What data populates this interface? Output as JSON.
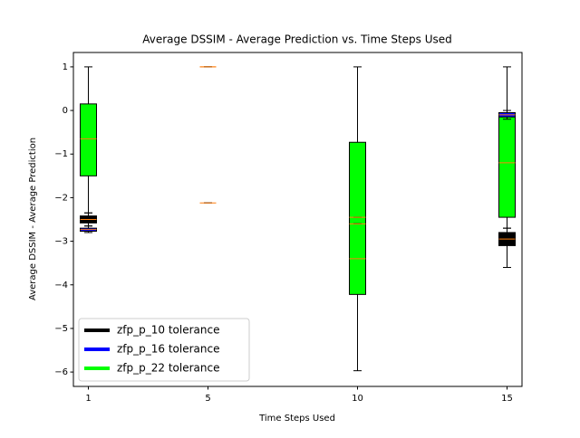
{
  "chart_data": {
    "type": "boxplot",
    "title": "Average DSSIM - Average Prediction vs. Time Steps Used",
    "xlabel": "Time Steps Used",
    "ylabel": "Average DSSIM - Average Prediction",
    "x": [
      1,
      5,
      10,
      15
    ],
    "xlim": [
      0.5,
      15.5
    ],
    "ylim": [
      -6.33,
      1.33
    ],
    "xticks": [
      1,
      5,
      10,
      15
    ],
    "yticks": [
      {
        "value": -6,
        "label": "−6"
      },
      {
        "value": -5,
        "label": "−5"
      },
      {
        "value": -4,
        "label": "−4"
      },
      {
        "value": -3,
        "label": "−3"
      },
      {
        "value": -2,
        "label": "−2"
      },
      {
        "value": -1,
        "label": "−1"
      },
      0,
      1
    ],
    "legend": "lower left",
    "median_color": "#ff7f0e",
    "series": [
      {
        "name": "zfp_p_10 tolerance",
        "color": "#000000",
        "values": [
          {
            "whislo": -2.65,
            "q1": -2.58,
            "med": -2.5,
            "q3": -2.42,
            "whishi": -2.35
          },
          {
            "whislo": -2.12,
            "q1": -2.12,
            "med": -2.12,
            "q3": -2.12,
            "whishi": -2.12
          },
          {
            "whislo": -2.45,
            "q1": -2.45,
            "med": -2.45,
            "q3": -2.45,
            "whishi": -2.45
          },
          {
            "whislo": -3.6,
            "q1": -3.1,
            "med": -2.95,
            "q3": -2.8,
            "whishi": -2.7
          }
        ]
      },
      {
        "name": "zfp_p_16 tolerance",
        "color": "#0000ff",
        "values": [
          {
            "whislo": -2.8,
            "q1": -2.77,
            "med": -2.73,
            "q3": -2.7,
            "whishi": -2.65
          },
          {
            "whislo": 1,
            "q1": 1,
            "med": 1,
            "q3": 1,
            "whishi": 1
          },
          {
            "whislo": -2.6,
            "q1": -2.6,
            "med": -2.6,
            "q3": -2.6,
            "whishi": -2.6
          },
          {
            "whislo": -0.2,
            "q1": -0.15,
            "med": -0.1,
            "q3": -0.05,
            "whishi": 0
          }
        ]
      },
      {
        "name": "zfp_p_22 tolerance",
        "color": "#00ff00",
        "values": [
          {
            "whislo": -2.35,
            "q1": -1.5,
            "med": -0.65,
            "q3": 0.15,
            "whishi": 1
          },
          {
            "whislo": 1,
            "q1": 1,
            "med": 1,
            "q3": 1,
            "whishi": 1
          },
          {
            "whislo": -5.97,
            "q1": -4.22,
            "med": -3.4,
            "q3": -0.73,
            "whishi": 1
          },
          {
            "whislo": -2.7,
            "q1": -2.45,
            "med": -1.2,
            "q3": -0.1,
            "whishi": 1
          }
        ]
      }
    ]
  }
}
